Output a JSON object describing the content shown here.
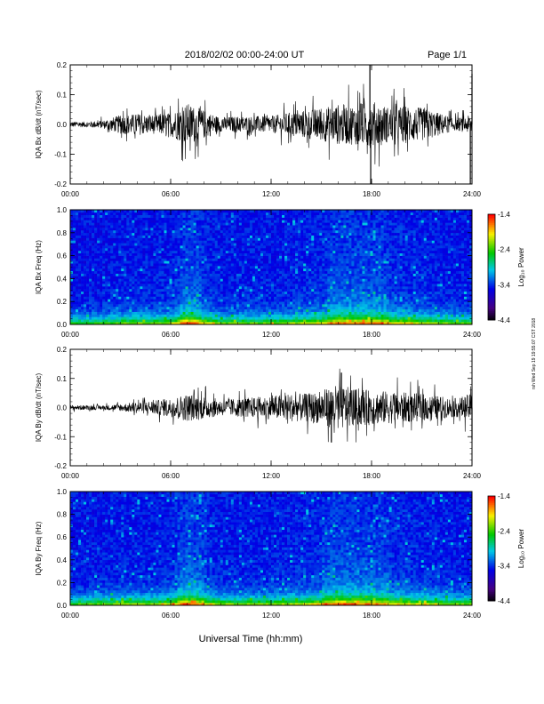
{
  "header": {
    "title": "2018/02/02  00:00-24:00 UT",
    "page": "Page 1/1"
  },
  "footer": {
    "xlabel": "Universal Time (hh:mm)"
  },
  "side_stamp": "rsh Wed Sep 19 19:55:07 CST 2018",
  "x_ticks": [
    "00:00",
    "06:00",
    "12:00",
    "18:00",
    "24:00"
  ],
  "chart_data": [
    {
      "type": "line",
      "ylabel": "IQA Bx dB/dt (nT/sec)",
      "ylim": [
        -0.2,
        0.2
      ],
      "y_ticks": [
        "0.2",
        "0.1",
        "0.0",
        "-0.1",
        "-0.2"
      ],
      "x": [
        0,
        1,
        2,
        3,
        4,
        5,
        6,
        7,
        8,
        9,
        10,
        11,
        12,
        13,
        14,
        15,
        16,
        17,
        18,
        19,
        20,
        21,
        22,
        23,
        24
      ],
      "envelope_amplitude": [
        0.012,
        0.012,
        0.018,
        0.04,
        0.045,
        0.04,
        0.05,
        0.09,
        0.06,
        0.03,
        0.035,
        0.035,
        0.035,
        0.05,
        0.06,
        0.07,
        0.085,
        0.085,
        0.1,
        0.075,
        0.08,
        0.07,
        0.05,
        0.025,
        0.04
      ],
      "peaks": [
        {
          "x": 17.9,
          "y": 0.2
        },
        {
          "x": 17.95,
          "y": -0.2
        },
        {
          "x": 23.9,
          "y": -0.2
        },
        {
          "x": 24.0,
          "y": 0.17
        }
      ]
    },
    {
      "type": "heatmap",
      "ylabel": "IQA Bx Freq (Hz)",
      "ylim": [
        0.0,
        1.0
      ],
      "y_ticks": [
        "1.0",
        "0.8",
        "0.6",
        "0.4",
        "0.2",
        "0.0"
      ],
      "colorbar": {
        "label": "Log₁₀ Power",
        "ticks": [
          "-1.4",
          "-2.4",
          "-3.4",
          "-4.4"
        ],
        "range": [
          -4.4,
          -1.4
        ]
      },
      "activity_x": [
        0,
        1,
        2,
        3,
        4,
        5,
        6,
        7,
        8,
        9,
        10,
        11,
        12,
        13,
        14,
        15,
        16,
        17,
        18,
        19,
        20,
        21,
        22,
        23,
        24
      ],
      "activity_level": [
        0.15,
        0.15,
        0.2,
        0.3,
        0.35,
        0.3,
        0.4,
        0.8,
        0.55,
        0.3,
        0.3,
        0.3,
        0.3,
        0.35,
        0.45,
        0.55,
        0.7,
        0.7,
        0.65,
        0.6,
        0.55,
        0.45,
        0.35,
        0.25,
        0.25
      ]
    },
    {
      "type": "line",
      "ylabel": "IQA By dB/dt (nT/sec)",
      "ylim": [
        -0.2,
        0.2
      ],
      "y_ticks": [
        "0.2",
        "0.1",
        "0.0",
        "-0.1",
        "-0.2"
      ],
      "x": [
        0,
        1,
        2,
        3,
        4,
        5,
        6,
        7,
        8,
        9,
        10,
        11,
        12,
        13,
        14,
        15,
        16,
        17,
        18,
        19,
        20,
        21,
        22,
        23,
        24
      ],
      "envelope_amplitude": [
        0.01,
        0.01,
        0.01,
        0.015,
        0.025,
        0.03,
        0.04,
        0.06,
        0.05,
        0.035,
        0.04,
        0.045,
        0.05,
        0.06,
        0.06,
        0.07,
        0.1,
        0.08,
        0.075,
        0.07,
        0.065,
        0.06,
        0.05,
        0.04,
        0.06
      ],
      "peaks": [
        {
          "x": 16.2,
          "y": 0.12
        },
        {
          "x": 15.6,
          "y": -0.12
        },
        {
          "x": 24.0,
          "y": -0.11
        }
      ]
    },
    {
      "type": "heatmap",
      "ylabel": "IQA By Freq (Hz)",
      "ylim": [
        0.0,
        1.0
      ],
      "y_ticks": [
        "1.0",
        "0.8",
        "0.6",
        "0.4",
        "0.2",
        "0.0"
      ],
      "colorbar": {
        "label": "Log₁₀ Power",
        "ticks": [
          "-1.4",
          "-2.4",
          "-3.4",
          "-4.4"
        ],
        "range": [
          -4.4,
          -1.4
        ]
      },
      "activity_x": [
        0,
        1,
        2,
        3,
        4,
        5,
        6,
        7,
        8,
        9,
        10,
        11,
        12,
        13,
        14,
        15,
        16,
        17,
        18,
        19,
        20,
        21,
        22,
        23,
        24
      ],
      "activity_level": [
        0.2,
        0.25,
        0.3,
        0.35,
        0.35,
        0.35,
        0.45,
        0.8,
        0.6,
        0.35,
        0.35,
        0.35,
        0.35,
        0.4,
        0.5,
        0.6,
        0.75,
        0.7,
        0.65,
        0.6,
        0.55,
        0.45,
        0.4,
        0.3,
        0.3
      ]
    }
  ]
}
